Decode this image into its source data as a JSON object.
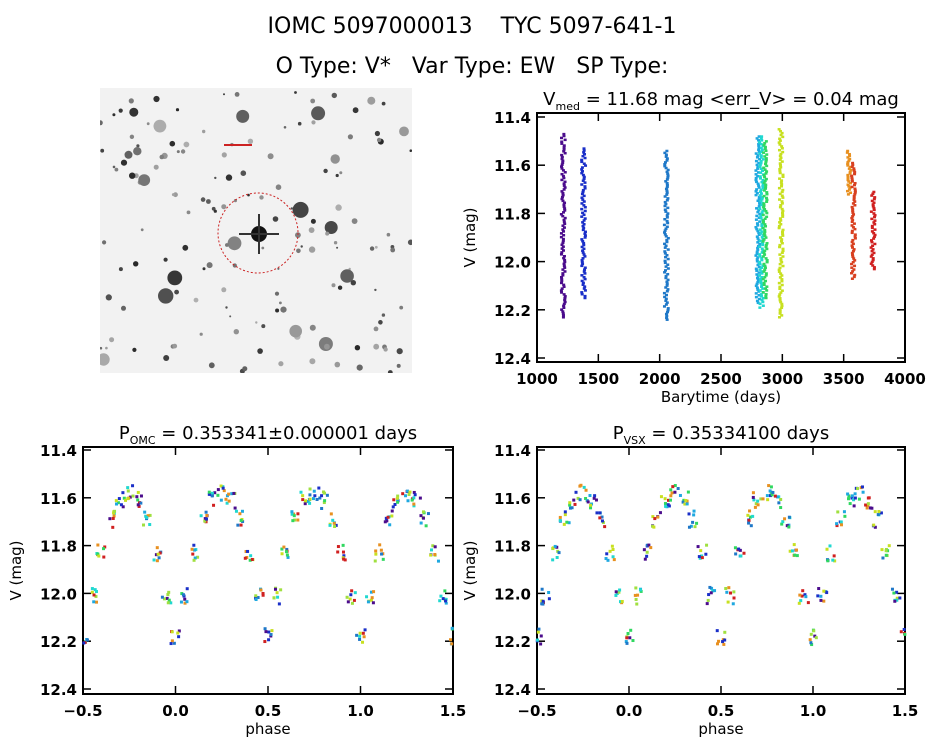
{
  "header": {
    "line1": "IOMC 5097000013    TYC 5097-641-1",
    "line2": "O Type: V*   Var Type: EW   SP Type:"
  },
  "sky_image": {
    "marker_color": "#cc2222"
  },
  "chart_data": [
    {
      "type": "scatter",
      "title": "V_med = 11.68 mag <err_V> = 0.04 mag",
      "title_parts": {
        "main": "V",
        "sub": "med",
        "rest": " = 11.68 mag <err_V> = 0.04 mag"
      },
      "xlabel": "Barytime (days)",
      "ylabel": "V (mag)",
      "xlim": [
        1000,
        4000
      ],
      "ylim": [
        12.4,
        11.4
      ],
      "y_inverted": true,
      "xticks": [
        "1000",
        "1500",
        "2000",
        "2500",
        "3000",
        "3500",
        "4000"
      ],
      "yticks": [
        "11.4",
        "11.6",
        "11.8",
        "12.0",
        "12.2",
        "12.4"
      ],
      "series": [
        {
          "x": 1215,
          "vmin": 11.47,
          "vmax": 12.23,
          "color": "#4b0c8c"
        },
        {
          "x": 1380,
          "vmin": 11.53,
          "vmax": 12.15,
          "color": "#1a2fc8"
        },
        {
          "x": 2055,
          "vmin": 11.54,
          "vmax": 12.24,
          "color": "#1f78c8"
        },
        {
          "x": 2800,
          "vmin": 11.48,
          "vmax": 12.17,
          "color": "#1fa8e0"
        },
        {
          "x": 2830,
          "vmin": 11.48,
          "vmax": 12.19,
          "color": "#20d8d0"
        },
        {
          "x": 2860,
          "vmin": 11.5,
          "vmax": 12.15,
          "color": "#30d860"
        },
        {
          "x": 2990,
          "vmin": 11.45,
          "vmax": 12.23,
          "color": "#c8e020"
        },
        {
          "x": 3545,
          "vmin": 11.54,
          "vmax": 11.72,
          "color": "#e89020"
        },
        {
          "x": 3580,
          "vmin": 11.59,
          "vmax": 12.07,
          "color": "#d84020"
        },
        {
          "x": 3740,
          "vmin": 11.71,
          "vmax": 12.03,
          "color": "#d02020"
        }
      ]
    },
    {
      "type": "scatter",
      "title_parts": {
        "main": "P",
        "sub": "OMC",
        "rest": " = 0.353341±0.000001 days"
      },
      "xlabel": "phase",
      "ylabel": "V (mag)",
      "xlim": [
        -0.5,
        1.5
      ],
      "ylim": [
        12.4,
        11.4
      ],
      "y_inverted": true,
      "xticks": [
        "-0.5",
        "0.0",
        "0.5",
        "1.0",
        "1.5"
      ],
      "yticks": [
        "11.4",
        "11.6",
        "11.8",
        "12.0",
        "12.2",
        "12.4"
      ],
      "phase": [
        0,
        0.05,
        0.1,
        0.15,
        0.2,
        0.25,
        0.3,
        0.35,
        0.4,
        0.45,
        0.5,
        0.55,
        0.6,
        0.65,
        0.7,
        0.75,
        0.8,
        0.85,
        0.9,
        0.95
      ],
      "v": [
        12.18,
        12.01,
        11.83,
        11.69,
        11.61,
        11.58,
        11.61,
        11.69,
        11.83,
        12.01,
        12.18,
        12.01,
        11.83,
        11.69,
        11.61,
        11.58,
        11.61,
        11.69,
        11.83,
        12.01
      ]
    },
    {
      "type": "scatter",
      "title_parts": {
        "main": "P",
        "sub": "VSX",
        "rest": " = 0.35334100 days"
      },
      "xlabel": "phase",
      "ylabel": "V (mag)",
      "xlim": [
        -0.5,
        1.5
      ],
      "ylim": [
        12.4,
        11.4
      ],
      "y_inverted": true,
      "xticks": [
        "-0.5",
        "0.0",
        "0.5",
        "1.0",
        "1.5"
      ],
      "yticks": [
        "11.4",
        "11.6",
        "11.8",
        "12.0",
        "12.2",
        "12.4"
      ],
      "phase": [
        0,
        0.05,
        0.1,
        0.15,
        0.2,
        0.25,
        0.3,
        0.35,
        0.4,
        0.45,
        0.5,
        0.55,
        0.6,
        0.65,
        0.7,
        0.75,
        0.8,
        0.85,
        0.9,
        0.95
      ],
      "v": [
        12.18,
        12.01,
        11.83,
        11.69,
        11.61,
        11.58,
        11.61,
        11.69,
        11.83,
        12.01,
        12.18,
        12.01,
        11.83,
        11.69,
        11.61,
        11.58,
        11.61,
        11.69,
        11.83,
        12.01
      ]
    }
  ],
  "point_colors": [
    "#4b0c8c",
    "#1a2fc8",
    "#1f78c8",
    "#1fa8e0",
    "#20d8d0",
    "#30d860",
    "#c8e020",
    "#a0e040",
    "#e89020",
    "#d02020"
  ]
}
